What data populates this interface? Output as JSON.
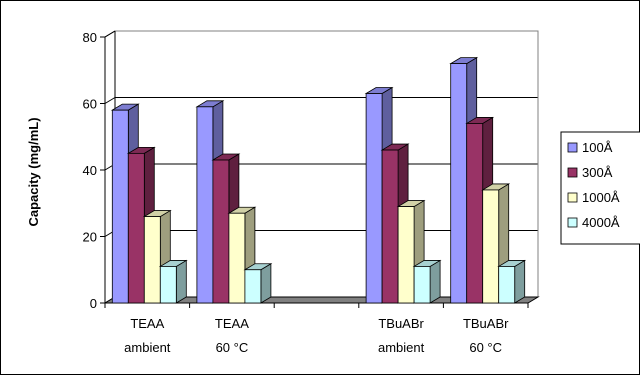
{
  "chart_data": {
    "type": "bar",
    "title": "",
    "xlabel": "",
    "ylabel": "Capacity (mg/mL)",
    "ylim": [
      0,
      80
    ],
    "yticks": [
      0,
      20,
      40,
      60,
      80
    ],
    "grid": true,
    "legend_position": "right",
    "categories": [
      {
        "line1": "TEAA",
        "line2": "ambient"
      },
      {
        "line1": "TEAA",
        "line2": "60 °C"
      },
      {
        "line1": "",
        "line2": ""
      },
      {
        "line1": "TBuABr",
        "line2": "ambient"
      },
      {
        "line1": "TBuABr",
        "line2": "60 °C"
      }
    ],
    "series": [
      {
        "name": "100Å",
        "color": "#9999ff",
        "values": [
          58,
          59,
          null,
          63,
          72
        ]
      },
      {
        "name": "300Å",
        "color": "#993366",
        "values": [
          45,
          43,
          null,
          46,
          54
        ]
      },
      {
        "name": "1000Å",
        "color": "#ffffcc",
        "values": [
          26,
          27,
          null,
          29,
          34
        ]
      },
      {
        "name": "4000Å",
        "color": "#ccffff",
        "values": [
          11,
          10,
          null,
          11,
          11
        ]
      }
    ]
  }
}
